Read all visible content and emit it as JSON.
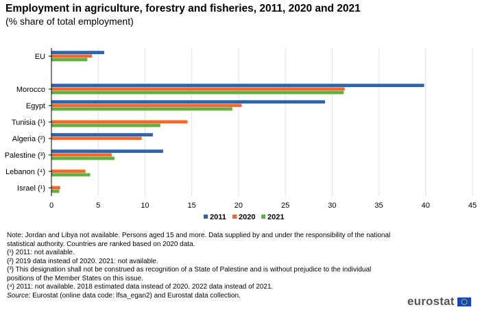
{
  "title": "Employment in agriculture, forestry and fisheries, 2011, 2020 and 2021",
  "subtitle": "(% share of total employment)",
  "chart_data": {
    "type": "bar",
    "orientation": "horizontal",
    "categories": [
      "EU",
      "",
      "Morocco",
      "Egypt",
      "Tunisia (¹)",
      "Algeria (²)",
      "Palestine (³)",
      "Lebanon (⁴)",
      "Israel (¹)"
    ],
    "series": [
      {
        "name": "2011",
        "color": "#2e63ad",
        "values": [
          5.6,
          null,
          39.8,
          29.2,
          null,
          10.8,
          11.9,
          null,
          null
        ]
      },
      {
        "name": "2020",
        "color": "#f06a2e",
        "values": [
          4.3,
          null,
          31.3,
          20.3,
          14.5,
          9.6,
          6.4,
          3.6,
          0.9
        ]
      },
      {
        "name": "2021",
        "color": "#5fb142",
        "values": [
          3.8,
          null,
          31.2,
          19.3,
          11.6,
          null,
          6.7,
          4.1,
          0.8
        ]
      }
    ],
    "xlim": [
      0,
      45
    ],
    "xticks": [
      "0",
      "5",
      "10",
      "15",
      "20",
      "25",
      "30",
      "35",
      "40",
      "45"
    ],
    "grid": true,
    "legend": "bottom-right"
  },
  "notes": [
    "Note: Jordan and Libya not available. Persons aged 15 and more. Data supplied by and under the responsibility of the national statistical authority. Countries are ranked based on 2020 data.",
    "(¹) 2011: not available.",
    "(²) 2019 data instead of 2020. 2021: not available.",
    "(³) This designation shall not be construed as recognition of a State of Palestine and is without prejudice to the individual  positions of the Member States on this issue.",
    "(⁴) 2011: not available. 2018 estimated data instead of 2020. 2022 data instead of 2021."
  ],
  "source": {
    "label": "Source:",
    "text": " Eurostat (online data code: lfsa_egan2) and Eurostat data collection."
  },
  "logo": {
    "text": "eurostat",
    "flag_color": "#0e47cb",
    "star_color": "#ffdd00"
  }
}
